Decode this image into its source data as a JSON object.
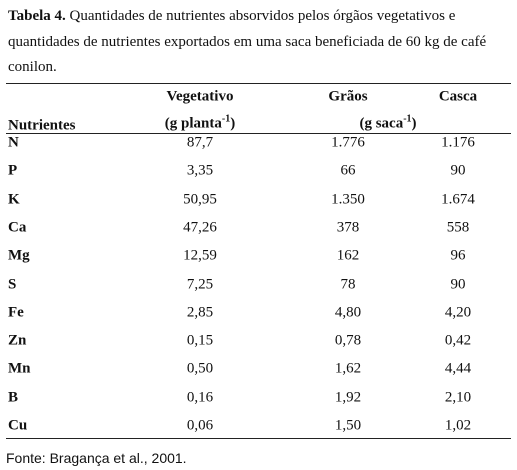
{
  "caption": {
    "label": "Tabela 4.",
    "text": "Quantidades de nutrientes absorvidos pelos órgãos vegetativos e quantidades de nutrientes exportados em uma saca beneficiada de 60 kg de café conilon."
  },
  "table": {
    "headers": [
      "Nutrientes",
      "Vegetativo",
      "Grãos",
      "Casca"
    ],
    "units": [
      {
        "base": "(g planta",
        "sup": "-1",
        "close": ")"
      },
      {
        "base": "(g saca",
        "sup": "-1",
        "close": ")"
      }
    ],
    "rows": [
      [
        "N",
        "87,7",
        "1.776",
        "1.176"
      ],
      [
        "P",
        "3,35",
        "66",
        "90"
      ],
      [
        "K",
        "50,95",
        "1.350",
        "1.674"
      ],
      [
        "Ca",
        "47,26",
        "378",
        "558"
      ],
      [
        "Mg",
        "12,59",
        "162",
        "96"
      ],
      [
        "S",
        "7,25",
        "78",
        "90"
      ],
      [
        "Fe",
        "2,85",
        "4,80",
        "4,20"
      ],
      [
        "Zn",
        "0,15",
        "0,78",
        "0,42"
      ],
      [
        "Mn",
        "0,50",
        "1,62",
        "4,44"
      ],
      [
        "B",
        "0,16",
        "1,92",
        "2,10"
      ],
      [
        "Cu",
        "0,06",
        "1,50",
        "1,02"
      ]
    ]
  },
  "source": "Fonte: Bragança et al., 2001."
}
